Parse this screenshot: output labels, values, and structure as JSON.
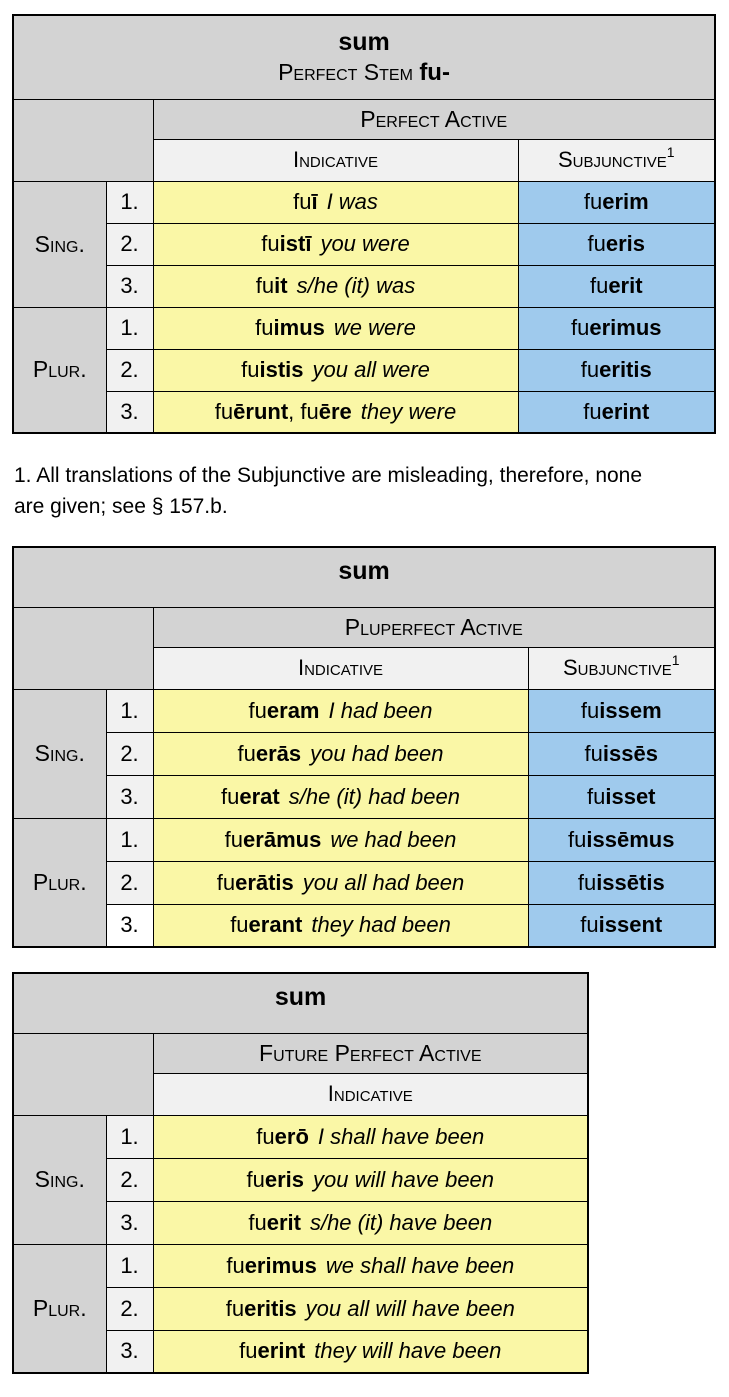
{
  "colors": {
    "header_gray": "#d3d3d3",
    "light_gray": "#f1f1f1",
    "indicative_yellow": "#faf7a6",
    "subjunctive_blue": "#9fcaed",
    "border": "#000000",
    "page_background": "#ffffff"
  },
  "footnote": {
    "lines": [
      "1. All translations of the Subjunctive are misleading, therefore, none",
      "are given; see § 157.b."
    ]
  },
  "tables": [
    {
      "title": "sum",
      "subtitle_prefix": "Perfect Stem ",
      "subtitle_bold": "fu-",
      "tense": "Perfect Active",
      "moods": [
        {
          "label": "Indicative"
        },
        {
          "label": "Subjunctive",
          "sup": "1"
        }
      ],
      "groups": [
        {
          "label": "Sing.",
          "rows": [
            {
              "num": "1.",
              "latin": [
                [
                  "fu",
                  0
                ],
                [
                  "ī",
                  1
                ]
              ],
              "trans": "I was",
              "subj": [
                [
                  "fu",
                  0
                ],
                [
                  "erim",
                  1
                ]
              ]
            },
            {
              "num": "2.",
              "latin": [
                [
                  "fu",
                  0
                ],
                [
                  "istī",
                  1
                ]
              ],
              "trans": "you were",
              "subj": [
                [
                  "fu",
                  0
                ],
                [
                  "eris",
                  1
                ]
              ]
            },
            {
              "num": "3.",
              "latin": [
                [
                  "fu",
                  0
                ],
                [
                  "it",
                  1
                ]
              ],
              "trans": "s/he (it) was",
              "subj": [
                [
                  "fu",
                  0
                ],
                [
                  "erit",
                  1
                ]
              ]
            }
          ]
        },
        {
          "label": "Plur.",
          "rows": [
            {
              "num": "1.",
              "latin": [
                [
                  "fu",
                  0
                ],
                [
                  "imus",
                  1
                ]
              ],
              "trans": "we were",
              "subj": [
                [
                  "fu",
                  0
                ],
                [
                  "erimus",
                  1
                ]
              ]
            },
            {
              "num": "2.",
              "latin": [
                [
                  "fu",
                  0
                ],
                [
                  "istis",
                  1
                ]
              ],
              "trans": "you all were",
              "subj": [
                [
                  "fu",
                  0
                ],
                [
                  "eritis",
                  1
                ]
              ]
            },
            {
              "num": "3.",
              "latin": [
                [
                  "fu",
                  0
                ],
                [
                  "ērunt",
                  1
                ],
                [
                  ", ",
                  0
                ],
                [
                  "fu",
                  0
                ],
                [
                  "ēre",
                  1
                ]
              ],
              "trans": "they were",
              "subj": [
                [
                  "fu",
                  0
                ],
                [
                  "erint",
                  1
                ]
              ]
            }
          ]
        }
      ]
    },
    {
      "title": "sum",
      "tense": "Pluperfect Active",
      "moods": [
        {
          "label": "Indicative"
        },
        {
          "label": "Subjunctive",
          "sup": "1"
        }
      ],
      "groups": [
        {
          "label": "Sing.",
          "rows": [
            {
              "num": "1.",
              "latin": [
                [
                  "fu",
                  0
                ],
                [
                  "eram",
                  1
                ]
              ],
              "trans": "I had been",
              "subj": [
                [
                  "fu",
                  0
                ],
                [
                  "issem",
                  1
                ]
              ]
            },
            {
              "num": "2.",
              "latin": [
                [
                  "fu",
                  0
                ],
                [
                  "erās",
                  1
                ]
              ],
              "trans": "you had been",
              "subj": [
                [
                  "fu",
                  0
                ],
                [
                  "issēs",
                  1
                ]
              ]
            },
            {
              "num": "3.",
              "latin": [
                [
                  "fu",
                  0
                ],
                [
                  "erat",
                  1
                ]
              ],
              "trans": "s/he (it) had been",
              "subj": [
                [
                  "fu",
                  0
                ],
                [
                  "isset",
                  1
                ]
              ]
            }
          ]
        },
        {
          "label": "Plur.",
          "rows": [
            {
              "num": "1.",
              "latin": [
                [
                  "fu",
                  0
                ],
                [
                  "erāmus",
                  1
                ]
              ],
              "trans": "we had been",
              "subj": [
                [
                  "fu",
                  0
                ],
                [
                  "issēmus",
                  1
                ]
              ]
            },
            {
              "num": "2.",
              "latin": [
                [
                  "fu",
                  0
                ],
                [
                  "erātis",
                  1
                ]
              ],
              "trans": "you all had been",
              "subj": [
                [
                  "fu",
                  0
                ],
                [
                  "issētis",
                  1
                ]
              ]
            },
            {
              "num": "3.",
              "latin": [
                [
                  "fu",
                  0
                ],
                [
                  "erant",
                  1
                ]
              ],
              "trans": "they had been",
              "subj": [
                [
                  "fu",
                  0
                ],
                [
                  "issent",
                  1
                ]
              ]
            }
          ]
        }
      ]
    },
    {
      "title": "sum",
      "tense": "Future Perfect Active",
      "moods": [
        {
          "label": "Indicative"
        }
      ],
      "groups": [
        {
          "label": "Sing.",
          "rows": [
            {
              "num": "1.",
              "latin": [
                [
                  "fu",
                  0
                ],
                [
                  "erō",
                  1
                ]
              ],
              "trans": "I shall have been"
            },
            {
              "num": "2.",
              "latin": [
                [
                  "fu",
                  0
                ],
                [
                  "eris",
                  1
                ]
              ],
              "trans": "you will  have been"
            },
            {
              "num": "3.",
              "latin": [
                [
                  "fu",
                  0
                ],
                [
                  "erit",
                  1
                ]
              ],
              "trans": "s/he (it) have been"
            }
          ]
        },
        {
          "label": "Plur.",
          "rows": [
            {
              "num": "1.",
              "latin": [
                [
                  "fu",
                  0
                ],
                [
                  "erimus",
                  1
                ]
              ],
              "trans": "we shall have been"
            },
            {
              "num": "2.",
              "latin": [
                [
                  "fu",
                  0
                ],
                [
                  "eritis",
                  1
                ]
              ],
              "trans": "you all  will have been"
            },
            {
              "num": "3.",
              "latin": [
                [
                  "fu",
                  0
                ],
                [
                  "erint",
                  1
                ]
              ],
              "trans": "they will have been"
            }
          ]
        }
      ]
    }
  ]
}
